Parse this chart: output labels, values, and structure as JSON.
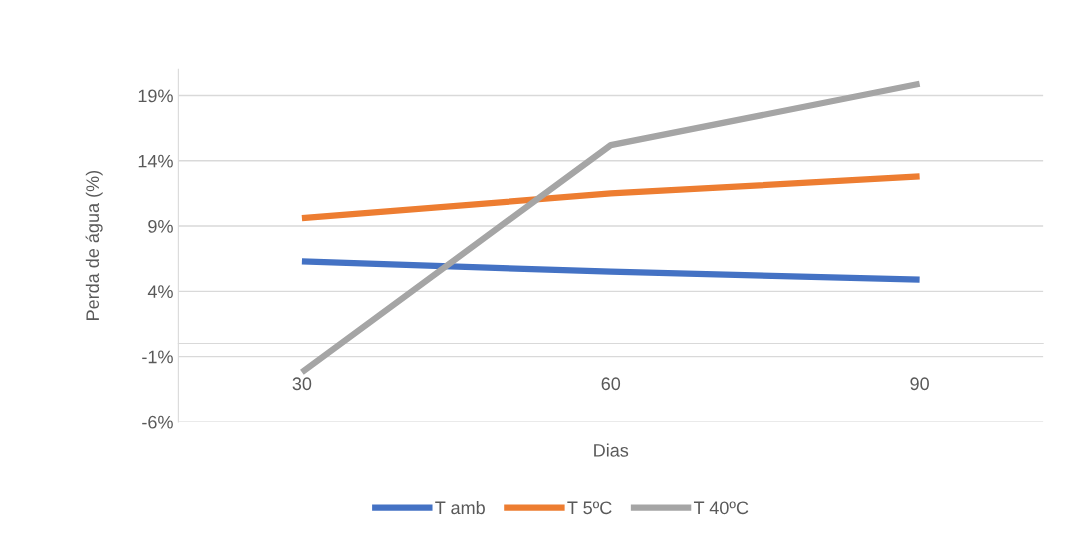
{
  "chart_data": {
    "type": "line",
    "xlabel": "Dias",
    "ylabel": "Perda de água (%)",
    "categories": [
      "30",
      "60",
      "90"
    ],
    "series": [
      {
        "name": "T amb",
        "color": "#4472c4",
        "values": [
          6.3,
          5.5,
          4.9
        ]
      },
      {
        "name": "T 5ºC",
        "color": "#ed7d31",
        "values": [
          9.6,
          11.5,
          12.8
        ]
      },
      {
        "name": "T 40ºC",
        "color": "#a5a5a5",
        "values": [
          -2.2,
          15.2,
          19.9
        ]
      }
    ],
    "ylim": [
      -6,
      21
    ],
    "yticks": [
      {
        "value": -6,
        "label": "-6%"
      },
      {
        "value": -1,
        "label": "-1%"
      },
      {
        "value": 4,
        "label": "4%"
      },
      {
        "value": 9,
        "label": "9%"
      },
      {
        "value": 14,
        "label": "14%"
      },
      {
        "value": 19,
        "label": "19%"
      }
    ],
    "grid": "y",
    "legend": "bottom",
    "marker": "none",
    "line_style": "solid"
  }
}
